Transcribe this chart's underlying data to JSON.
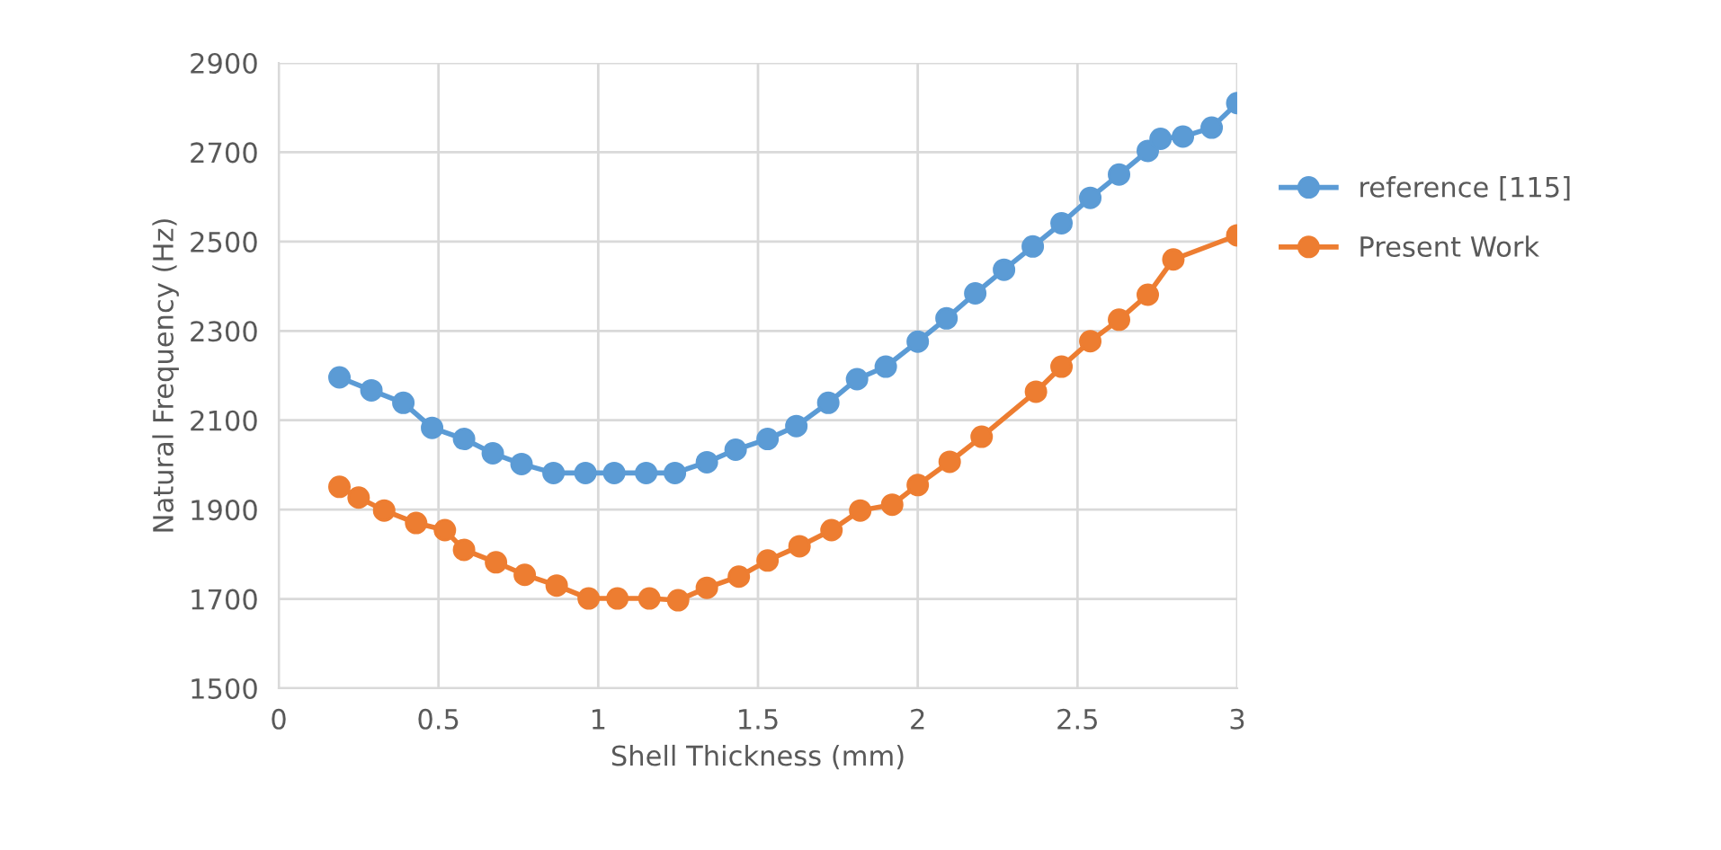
{
  "chart_data": {
    "type": "line",
    "xlabel": "Shell Thickness (mm)",
    "ylabel": "Natural Frequency (Hz)",
    "xlim": [
      0,
      3
    ],
    "xticks": [
      0,
      0.5,
      1,
      1.5,
      2,
      2.5,
      3
    ],
    "ylim": [
      1500,
      2900
    ],
    "yticks": [
      1500,
      1700,
      1900,
      2100,
      2300,
      2500,
      2700,
      2900
    ],
    "grid": true,
    "legend": "right",
    "marker": "circle",
    "line_style": "solid",
    "series": [
      {
        "name": "reference [115]",
        "color": "#5b9bd5",
        "x": [
          0.19,
          0.29,
          0.39,
          0.48,
          0.58,
          0.67,
          0.76,
          0.86,
          0.96,
          1.05,
          1.15,
          1.24,
          1.34,
          1.43,
          1.53,
          1.62,
          1.72,
          1.81,
          1.9,
          2.0,
          2.09,
          2.18,
          2.27,
          2.36,
          2.45,
          2.54,
          2.63,
          2.72,
          2.76,
          2.83,
          2.92,
          3.0
        ],
        "values": [
          2196,
          2167,
          2139,
          2083,
          2058,
          2026,
          2002,
          1982,
          1982,
          1982,
          1982,
          1982,
          2006,
          2034,
          2058,
          2087,
          2139,
          2192,
          2220,
          2276,
          2328,
          2384,
          2437,
          2489,
          2541,
          2598,
          2650,
          2703,
          2730,
          2735,
          2755,
          2810
        ]
      },
      {
        "name": "Present Work",
        "color": "#ed7d31",
        "x": [
          0.19,
          0.25,
          0.33,
          0.43,
          0.52,
          0.58,
          0.68,
          0.77,
          0.87,
          0.97,
          1.06,
          1.16,
          1.25,
          1.34,
          1.44,
          1.53,
          1.63,
          1.73,
          1.82,
          1.92,
          2.0,
          2.1,
          2.2,
          2.37,
          2.45,
          2.54,
          2.63,
          2.72,
          2.8,
          3.0
        ],
        "values": [
          1951,
          1927,
          1898,
          1870,
          1854,
          1810,
          1782,
          1754,
          1730,
          1701,
          1701,
          1701,
          1697,
          1725,
          1750,
          1786,
          1818,
          1854,
          1898,
          1911,
          1955,
          2007,
          2063,
          2164,
          2220,
          2277,
          2325,
          2381,
          2460,
          2514
        ]
      }
    ]
  }
}
